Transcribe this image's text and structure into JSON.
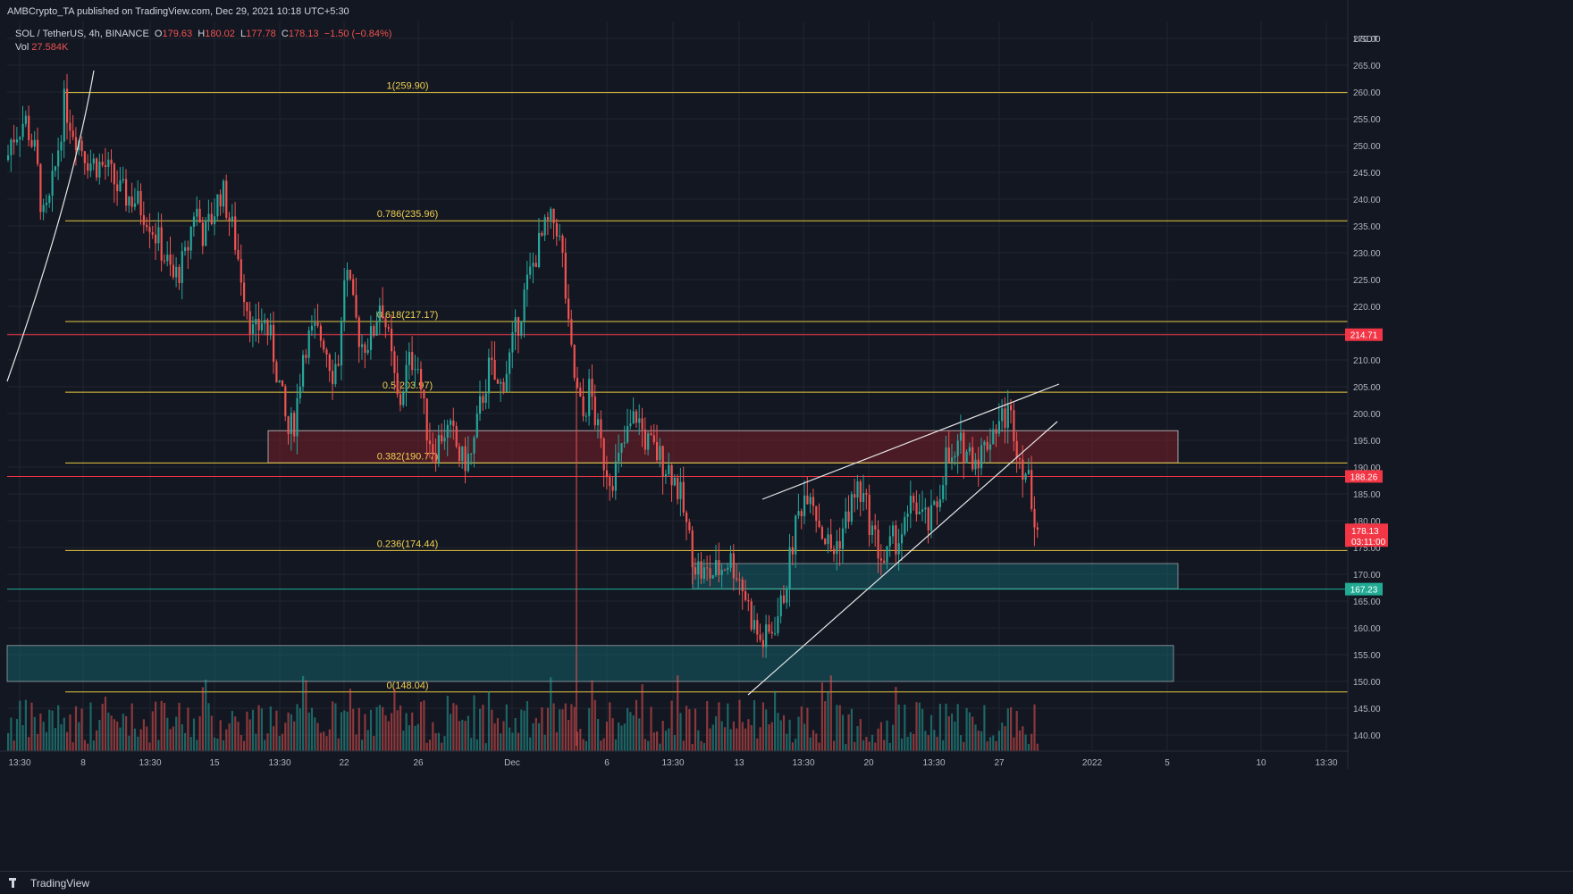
{
  "publisher_line": "AMBCrypto_TA published on TradingView.com, Dec 29, 2021 10:18 UTC+5:30",
  "symbol_line": {
    "pair": "SOL / TetherUS, 4h, BINANCE",
    "o_label": "O",
    "o": "179.63",
    "h_label": "H",
    "h": "180.02",
    "l_label": "L",
    "l": "177.78",
    "c_label": "C",
    "c": "178.13",
    "change": "−1.50 (−0.84%)"
  },
  "volume_line": {
    "label": "Vol",
    "value": "27.584K"
  },
  "footer": {
    "brand": "TradingView"
  },
  "chart_data": {
    "type": "candlestick",
    "currency": "USDT",
    "y_axis": {
      "min": 137,
      "max": 271,
      "ticks": [
        140,
        145,
        150,
        155,
        160,
        165,
        170,
        175,
        180,
        185,
        190,
        195,
        200,
        205,
        210,
        215,
        220,
        225,
        230,
        235,
        240,
        245,
        250,
        255,
        260,
        265,
        270
      ]
    },
    "x_axis_labels": [
      "13:30",
      "8",
      "13:30",
      "15",
      "13:30",
      "22",
      "26",
      "Dec",
      "6",
      "13:30",
      "13",
      "13:30",
      "20",
      "13:30",
      "27",
      "2022",
      "5",
      "10",
      "13:30"
    ],
    "fib_levels": [
      {
        "label": "1(259.90)",
        "value": 259.9
      },
      {
        "label": "0.786(235.96)",
        "value": 235.96
      },
      {
        "label": "0.618(217.17)",
        "value": 217.17
      },
      {
        "label": "0.5(203.97)",
        "value": 203.97
      },
      {
        "label": "0.382(190.77)",
        "value": 190.77
      },
      {
        "label": "0.236(174.44)",
        "value": 174.44
      },
      {
        "label": "0(148.04)",
        "value": 148.04
      }
    ],
    "price_lines": [
      {
        "label": "214.71",
        "value": 214.71,
        "color": "#f23645"
      },
      {
        "label": "188.26",
        "value": 188.26,
        "color": "#f23645"
      },
      {
        "label": "167.23",
        "value": 167.23,
        "color": "#22ab94"
      }
    ],
    "current_price": {
      "label": "178.13",
      "value": 178.13,
      "countdown": "03:11:00",
      "color": "#f23645"
    },
    "zones": [
      {
        "kind": "supply",
        "low": 190.8,
        "high": 196.8
      },
      {
        "kind": "demand",
        "low": 167.3,
        "high": 172.0
      },
      {
        "kind": "demand",
        "low": 150.0,
        "high": 156.7
      }
    ],
    "price_path": [
      [
        0,
        240
      ],
      [
        12,
        251
      ],
      [
        28,
        255
      ],
      [
        40,
        248
      ],
      [
        48,
        236
      ],
      [
        54,
        238
      ],
      [
        62,
        246
      ],
      [
        72,
        258
      ],
      [
        82,
        253
      ],
      [
        100,
        247
      ],
      [
        118,
        246
      ],
      [
        135,
        241
      ],
      [
        150,
        240
      ],
      [
        165,
        237
      ],
      [
        180,
        231
      ],
      [
        194,
        225
      ],
      [
        208,
        229
      ],
      [
        218,
        239
      ],
      [
        228,
        233
      ],
      [
        238,
        237
      ],
      [
        248,
        242
      ],
      [
        262,
        233
      ],
      [
        272,
        224
      ],
      [
        284,
        214
      ],
      [
        294,
        218
      ],
      [
        304,
        213
      ],
      [
        314,
        204
      ],
      [
        322,
        196
      ],
      [
        330,
        199
      ],
      [
        340,
        213
      ],
      [
        352,
        215
      ],
      [
        362,
        214
      ],
      [
        372,
        208
      ],
      [
        380,
        211
      ],
      [
        386,
        228
      ],
      [
        394,
        220
      ],
      [
        404,
        213
      ],
      [
        416,
        214
      ],
      [
        426,
        222
      ],
      [
        436,
        212
      ],
      [
        446,
        201
      ],
      [
        456,
        209
      ],
      [
        466,
        211
      ],
      [
        476,
        198
      ],
      [
        486,
        193
      ],
      [
        496,
        197
      ],
      [
        506,
        196
      ],
      [
        516,
        191
      ],
      [
        528,
        192
      ],
      [
        538,
        202
      ],
      [
        548,
        209
      ],
      [
        558,
        204
      ],
      [
        568,
        209
      ],
      [
        578,
        216
      ],
      [
        588,
        223
      ],
      [
        600,
        230
      ],
      [
        612,
        235
      ],
      [
        622,
        236
      ],
      [
        630,
        228
      ],
      [
        636,
        215
      ],
      [
        644,
        205
      ],
      [
        652,
        199
      ],
      [
        660,
        205
      ],
      [
        668,
        197
      ],
      [
        676,
        191
      ],
      [
        684,
        188
      ],
      [
        692,
        191
      ],
      [
        702,
        196
      ],
      [
        712,
        200
      ],
      [
        722,
        195
      ],
      [
        732,
        193
      ],
      [
        742,
        191
      ],
      [
        752,
        189
      ],
      [
        762,
        184
      ],
      [
        770,
        177
      ],
      [
        778,
        172
      ],
      [
        786,
        170
      ],
      [
        796,
        170
      ],
      [
        806,
        171
      ],
      [
        816,
        173
      ],
      [
        826,
        170
      ],
      [
        834,
        166
      ],
      [
        842,
        161
      ],
      [
        852,
        157
      ],
      [
        862,
        159
      ],
      [
        874,
        164
      ],
      [
        882,
        171
      ],
      [
        890,
        179
      ],
      [
        898,
        184
      ],
      [
        906,
        187
      ],
      [
        914,
        181
      ],
      [
        922,
        177
      ],
      [
        932,
        174
      ],
      [
        942,
        178
      ],
      [
        952,
        183
      ],
      [
        960,
        186
      ],
      [
        968,
        183
      ],
      [
        976,
        178
      ],
      [
        984,
        174
      ],
      [
        990,
        172
      ],
      [
        998,
        176
      ],
      [
        1006,
        177
      ],
      [
        1014,
        179
      ],
      [
        1022,
        184
      ],
      [
        1030,
        181
      ],
      [
        1040,
        179
      ],
      [
        1050,
        184
      ],
      [
        1058,
        192
      ],
      [
        1066,
        190
      ],
      [
        1074,
        194
      ],
      [
        1082,
        193
      ],
      [
        1092,
        192
      ],
      [
        1100,
        193
      ],
      [
        1110,
        197
      ],
      [
        1120,
        199
      ],
      [
        1128,
        200
      ],
      [
        1134,
        198
      ],
      [
        1140,
        192
      ],
      [
        1146,
        190
      ],
      [
        1152,
        186
      ],
      [
        1158,
        181
      ],
      [
        1163,
        178
      ]
    ],
    "volume_scale_note": "relative"
  }
}
